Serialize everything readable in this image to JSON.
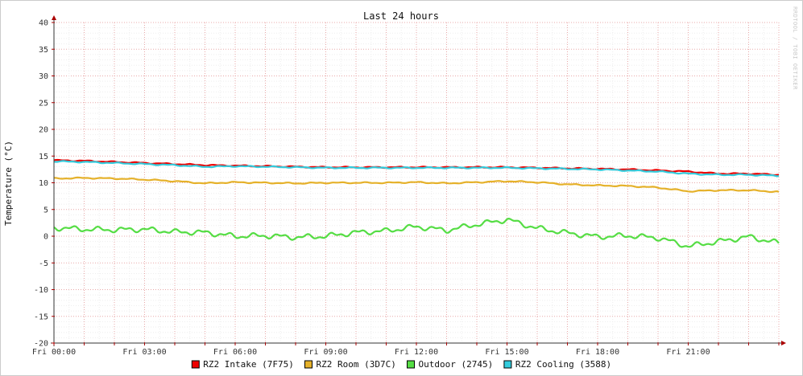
{
  "chart_data": {
    "type": "line",
    "title": "Last 24 hours",
    "ylabel": "Temperature (°C)",
    "xlabel": "",
    "watermark": "RRDTOOL / TOBI OETIKER",
    "ylim": [
      -20,
      40
    ],
    "yticks": [
      "40",
      "35",
      "30",
      "25",
      "20",
      "15",
      "10",
      "5",
      "0",
      "-5",
      "-10",
      "-15",
      "-20"
    ],
    "xlim": [
      0,
      24
    ],
    "xticks": [
      {
        "label": "Fri 00:00",
        "hour": 0
      },
      {
        "label": "Fri 03:00",
        "hour": 3
      },
      {
        "label": "Fri 06:00",
        "hour": 6
      },
      {
        "label": "Fri 09:00",
        "hour": 9
      },
      {
        "label": "Fri 12:00",
        "hour": 12
      },
      {
        "label": "Fri 15:00",
        "hour": 15
      },
      {
        "label": "Fri 18:00",
        "hour": 18
      },
      {
        "label": "Fri 21:00",
        "hour": 21
      }
    ],
    "grid": true,
    "legend_position": "bottom",
    "x_hours": [
      0,
      1,
      2,
      3,
      4,
      5,
      6,
      7,
      8,
      9,
      10,
      11,
      12,
      13,
      14,
      15,
      16,
      17,
      18,
      19,
      20,
      21,
      22,
      23,
      24
    ],
    "series": [
      {
        "name": "RZ2 Intake (7F75)",
        "color": "#ee0000",
        "values": [
          14.2,
          14.1,
          13.9,
          13.7,
          13.5,
          13.3,
          13.2,
          13.1,
          13.0,
          12.9,
          12.9,
          12.9,
          12.9,
          12.9,
          12.9,
          12.9,
          12.8,
          12.7,
          12.6,
          12.5,
          12.3,
          12.1,
          11.7,
          11.7,
          11.5
        ]
      },
      {
        "name": "RZ2 Room (3D7C)",
        "color": "#e5b12a",
        "values": [
          10.8,
          10.9,
          10.8,
          10.6,
          10.3,
          9.9,
          10.1,
          10.0,
          9.9,
          10.0,
          10.0,
          10.0,
          10.1,
          9.9,
          10.1,
          10.3,
          10.1,
          9.7,
          9.5,
          9.4,
          9.1,
          8.4,
          8.6,
          8.6,
          8.3
        ]
      },
      {
        "name": "Outdoor (2745)",
        "color": "#55dd44",
        "values": [
          1.6,
          1.3,
          1.2,
          1.3,
          0.8,
          0.7,
          0.0,
          0.1,
          -0.2,
          0.0,
          0.7,
          1.0,
          1.8,
          1.1,
          2.2,
          3.1,
          1.5,
          0.6,
          -0.1,
          0.1,
          -0.3,
          -1.9,
          -1.0,
          -0.1,
          -1.3
        ]
      },
      {
        "name": "RZ2 Cooling (3588)",
        "color": "#33ccdd",
        "values": [
          14.0,
          13.9,
          13.7,
          13.5,
          13.3,
          13.0,
          13.1,
          13.0,
          12.9,
          12.8,
          12.8,
          12.8,
          12.8,
          12.8,
          12.8,
          12.8,
          12.7,
          12.6,
          12.5,
          12.3,
          12.1,
          11.7,
          11.5,
          11.5,
          11.3
        ]
      }
    ]
  }
}
